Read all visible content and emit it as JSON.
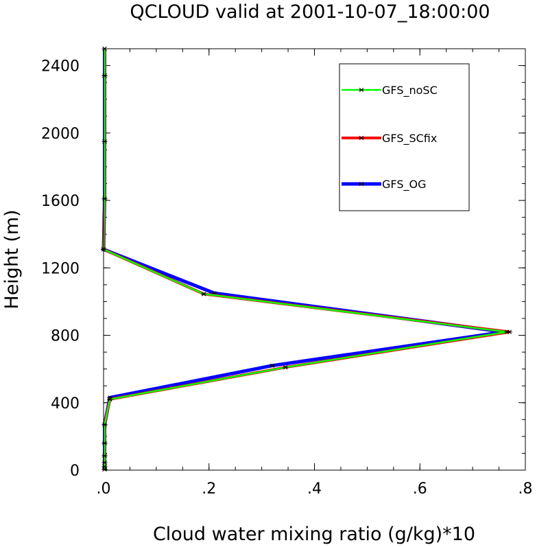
{
  "chart_data": {
    "type": "line",
    "title": "QCLOUD valid at 2001-10-07_18:00:00",
    "xlabel": "Cloud water mixing ratio (g/kg)*10",
    "ylabel": "Height (m)",
    "xlim": [
      0,
      0.8
    ],
    "ylim": [
      0,
      2500
    ],
    "x_ticks": [
      0,
      0.2,
      0.4,
      0.6,
      0.8
    ],
    "x_tick_labels": [
      ".0",
      ".2",
      ".4",
      ".6",
      ".8"
    ],
    "y_ticks": [
      0,
      400,
      800,
      1200,
      1600,
      2000,
      2400
    ],
    "y_tick_labels": [
      "0",
      "400",
      "800",
      "1200",
      "1600",
      "2000",
      "2400"
    ],
    "grid": false,
    "legend_position": "top-right",
    "series": [
      {
        "name": "GFS_OG",
        "color": "#0000ff",
        "marker": "asterisk",
        "points": [
          [
            0.002,
            5
          ],
          [
            0.002,
            20
          ],
          [
            0.002,
            45
          ],
          [
            0.002,
            85
          ],
          [
            0.002,
            160
          ],
          [
            0.002,
            270
          ],
          [
            0.012,
            430
          ],
          [
            0.32,
            620
          ],
          [
            0.76,
            820
          ],
          [
            0.21,
            1050
          ],
          [
            0.0,
            1310
          ],
          [
            0.002,
            1610
          ],
          [
            0.002,
            1950
          ],
          [
            0.002,
            2340
          ],
          [
            0.002,
            2500
          ]
        ]
      },
      {
        "name": "GFS_SCfix",
        "color": "#ff0000",
        "marker": "asterisk",
        "points": [
          [
            0.002,
            5
          ],
          [
            0.002,
            20
          ],
          [
            0.002,
            45
          ],
          [
            0.002,
            85
          ],
          [
            0.002,
            160
          ],
          [
            0.002,
            270
          ],
          [
            0.012,
            420
          ],
          [
            0.345,
            610
          ],
          [
            0.77,
            820
          ],
          [
            0.19,
            1045
          ],
          [
            0.0,
            1310
          ],
          [
            0.002,
            1610
          ],
          [
            0.002,
            1950
          ],
          [
            0.002,
            2340
          ],
          [
            0.002,
            2500
          ]
        ]
      },
      {
        "name": "GFS_noSC",
        "color": "#00ff00",
        "marker": "asterisk",
        "points": [
          [
            0.002,
            5
          ],
          [
            0.002,
            20
          ],
          [
            0.002,
            45
          ],
          [
            0.002,
            85
          ],
          [
            0.002,
            160
          ],
          [
            0.002,
            270
          ],
          [
            0.012,
            420
          ],
          [
            0.345,
            610
          ],
          [
            0.765,
            820
          ],
          [
            0.19,
            1045
          ],
          [
            0.0,
            1310
          ],
          [
            0.002,
            1610
          ],
          [
            0.002,
            1950
          ],
          [
            0.002,
            2340
          ],
          [
            0.002,
            2500
          ]
        ]
      }
    ],
    "legend_order": [
      "GFS_noSC",
      "GFS_SCfix",
      "GFS_OG"
    ]
  }
}
